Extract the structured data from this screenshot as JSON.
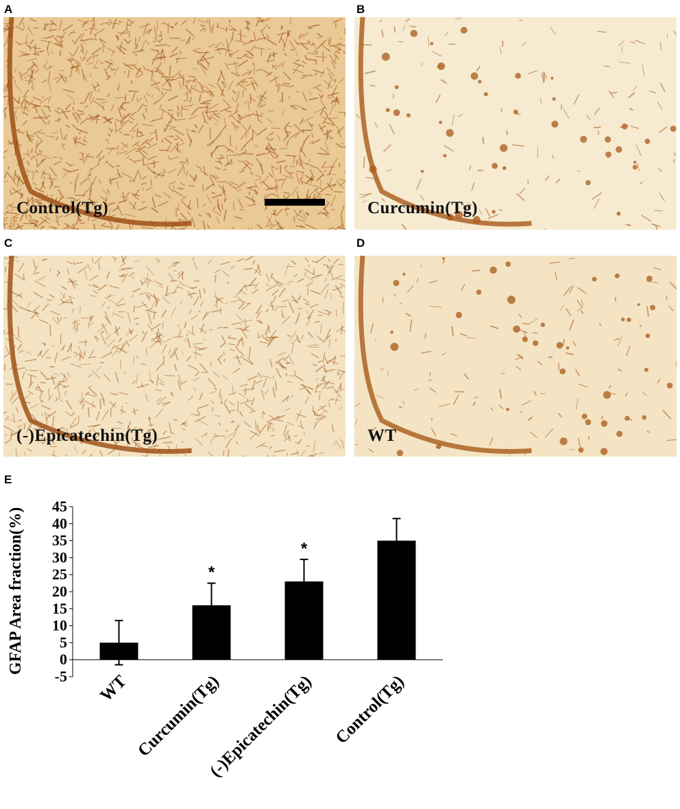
{
  "panels": [
    {
      "letter": "A",
      "caption": "Control(Tg)",
      "density": "high",
      "tissue_color": "#e9c995",
      "stain_color": "#9a4a10"
    },
    {
      "letter": "B",
      "caption": "Curcumin(Tg)",
      "density": "low",
      "tissue_color": "#f6ead0",
      "stain_color": "#a85a1a"
    },
    {
      "letter": "C",
      "caption": "(-)Epicatechin(Tg)",
      "density": "medium",
      "tissue_color": "#f3e3c2",
      "stain_color": "#9a4a10"
    },
    {
      "letter": "D",
      "caption": "WT",
      "density": "low",
      "tissue_color": "#f4e4c4",
      "stain_color": "#a85a1a"
    }
  ],
  "chart_letter": "E",
  "chart_data": {
    "type": "bar",
    "categories": [
      "WT",
      "Curcumin(Tg)",
      "(-)Epicatechin(Tg)",
      "Control(Tg)"
    ],
    "values": [
      5,
      16,
      23,
      35
    ],
    "errors": [
      6.5,
      6.5,
      6.5,
      6.5
    ],
    "significance": [
      "",
      "*",
      "*",
      ""
    ],
    "ylabel": "GFAP Area fraction(%)",
    "ylim": [
      -5,
      45
    ],
    "yticks": [
      -5,
      0,
      5,
      10,
      15,
      20,
      25,
      30,
      35,
      40,
      45
    ],
    "bar_color": "#000000"
  }
}
